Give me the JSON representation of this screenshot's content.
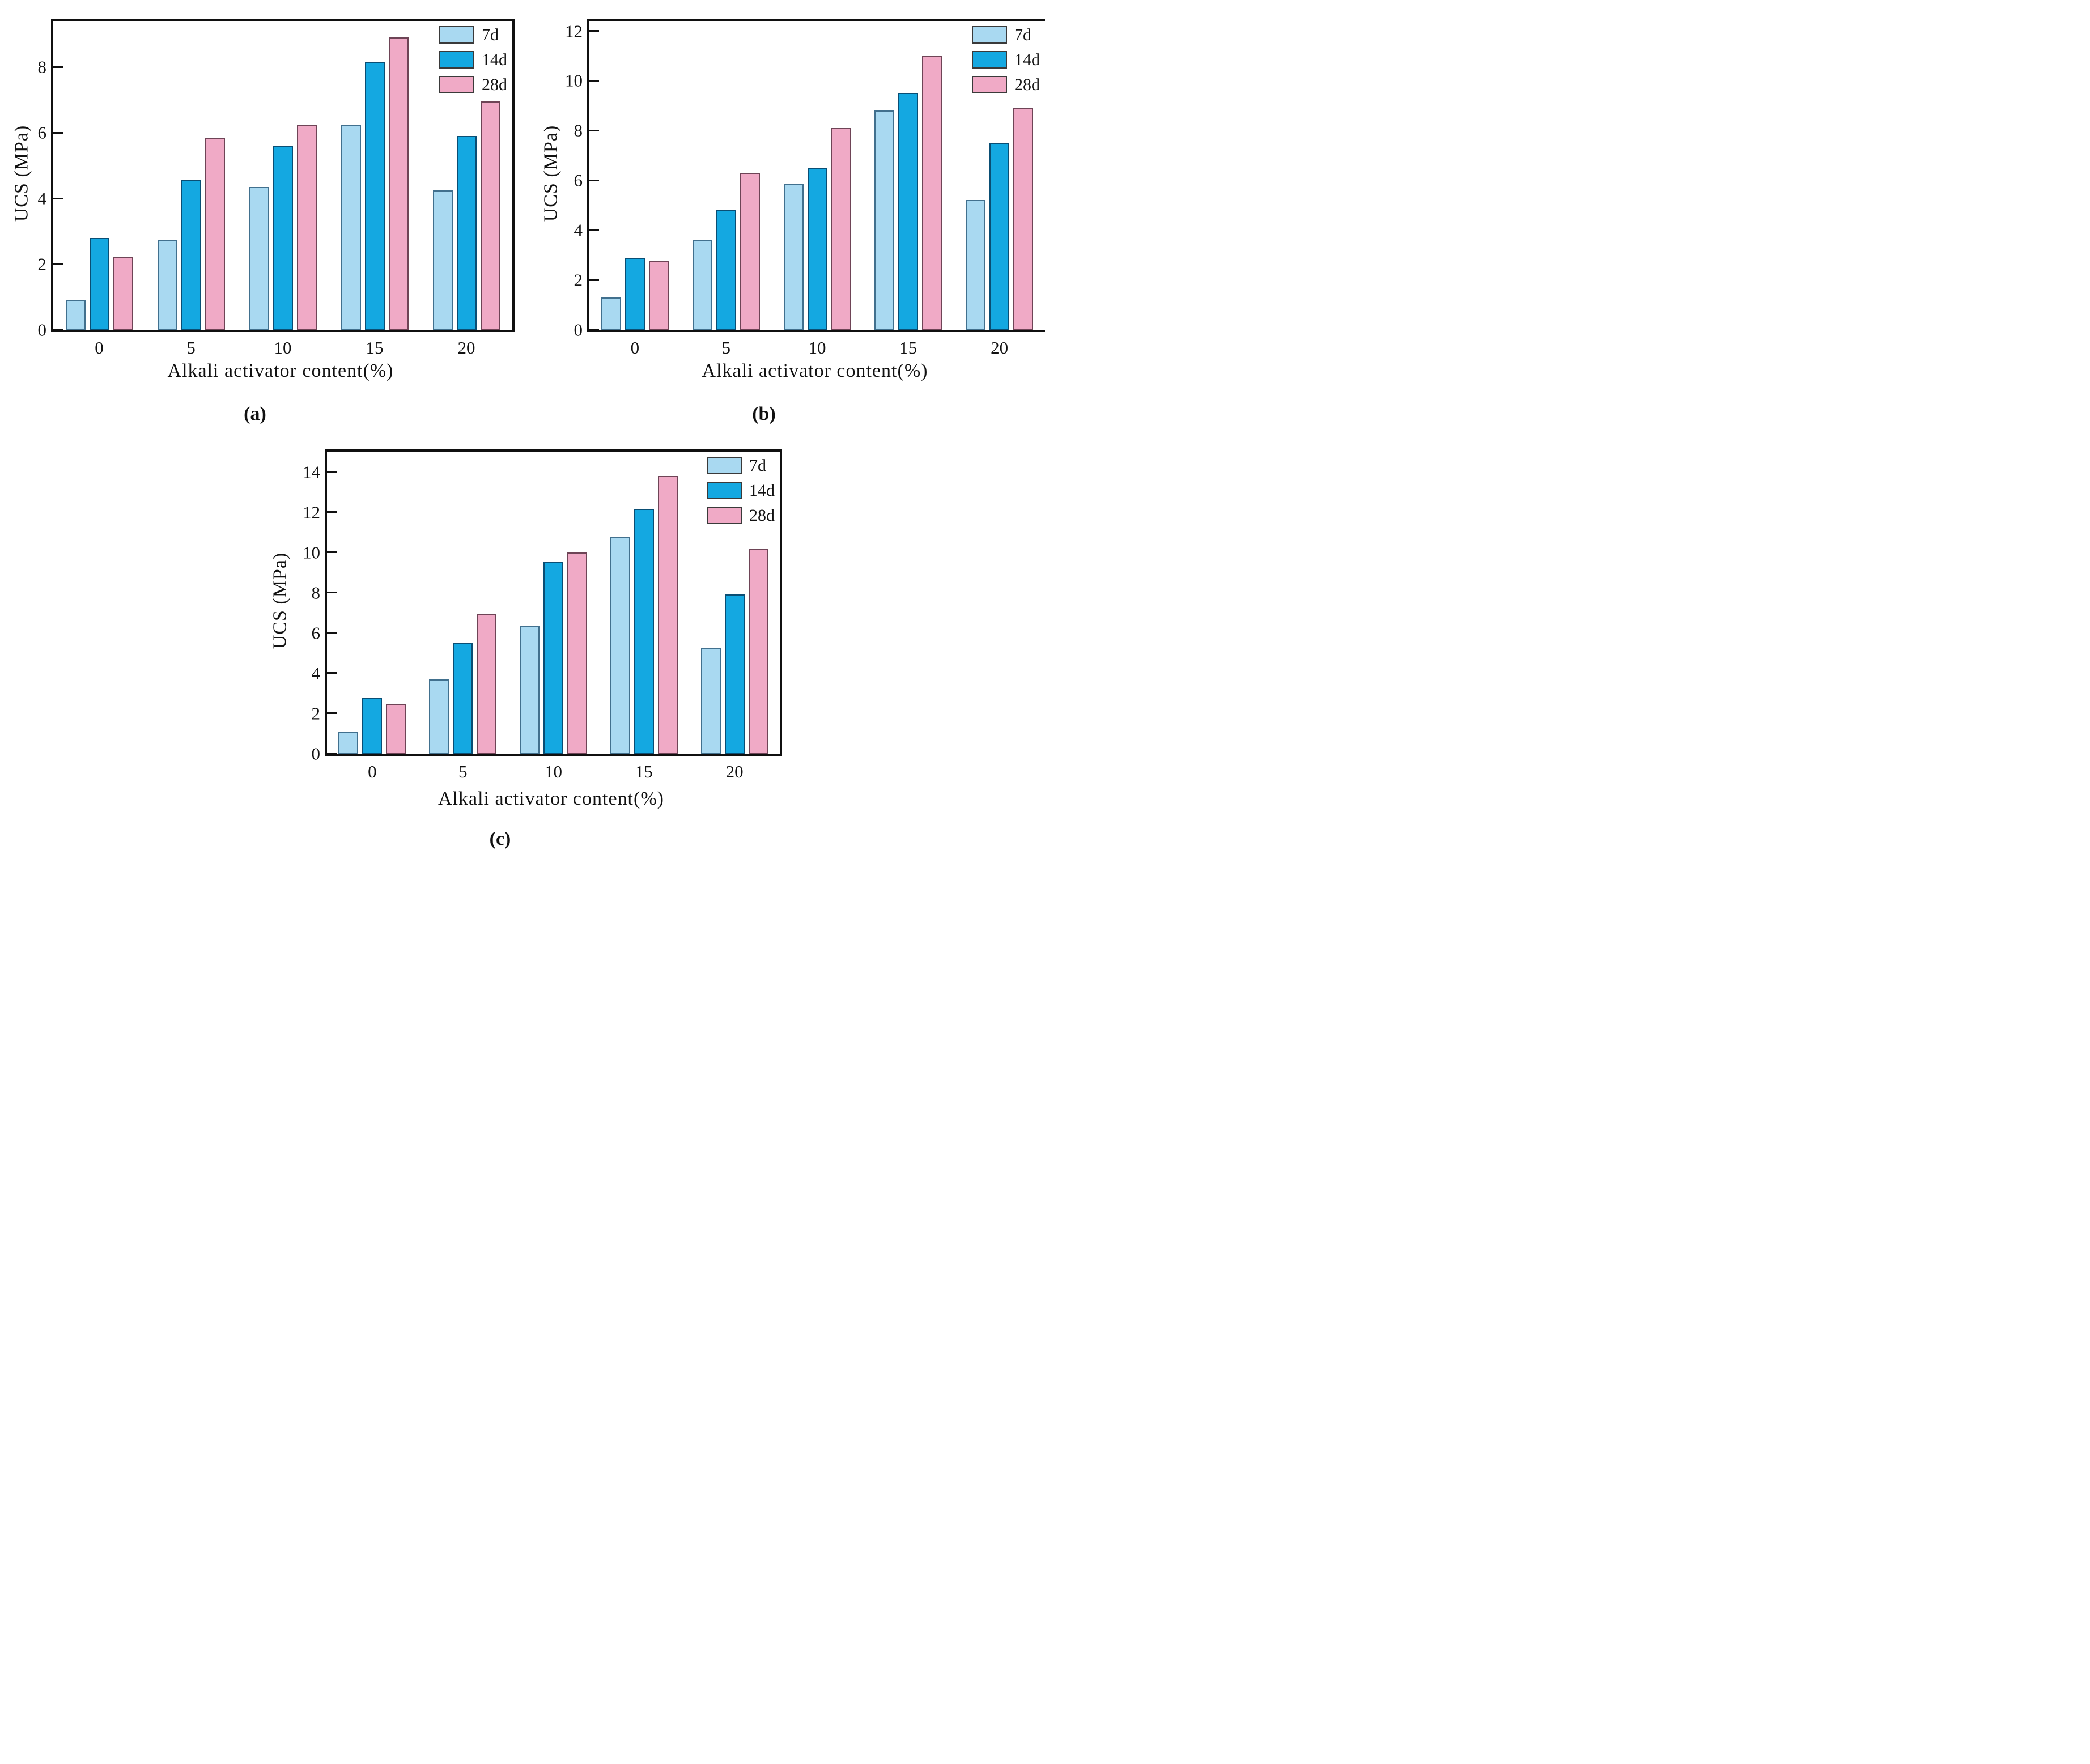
{
  "figure": {
    "y_axis_label": "UCS (MPa)",
    "x_axis_label": "Alkali activator content(%)",
    "legend_labels": [
      "7d",
      "14d",
      "28d"
    ],
    "colors": {
      "fills": {
        "7d": "#A9D9F1",
        "14d": "#14A8E1",
        "28d": "#F0AAC6"
      },
      "borders": {
        "7d": "#41708E",
        "14d": "#0A4E74",
        "28d": "#6E4456"
      },
      "axis": "#101010",
      "legend_swatch_border": "#3a3a3a"
    }
  },
  "chart_data": [
    {
      "type": "bar",
      "panel_label": "(a)",
      "xlabel": "Alkali activator content(%)",
      "ylabel": "UCS (MPa)",
      "categories": [
        "0",
        "5",
        "10",
        "15",
        "20"
      ],
      "yticks": [
        0,
        2,
        4,
        6,
        8
      ],
      "ylim": [
        0,
        9.4
      ],
      "grid": false,
      "legend_position": "top-right-inside",
      "series": [
        {
          "name": "7d",
          "values": [
            0.9,
            2.75,
            4.35,
            6.25,
            4.25
          ]
        },
        {
          "name": "14d",
          "values": [
            2.8,
            4.55,
            5.6,
            8.15,
            5.9
          ]
        },
        {
          "name": "28d",
          "values": [
            2.2,
            5.85,
            6.25,
            8.9,
            6.95
          ]
        }
      ]
    },
    {
      "type": "bar",
      "panel_label": "(b)",
      "xlabel": "Alkali activator content(%)",
      "ylabel": "UCS (MPa)",
      "categories": [
        "0",
        "5",
        "10",
        "15",
        "20"
      ],
      "yticks": [
        0,
        2,
        4,
        6,
        8,
        10,
        12
      ],
      "ylim": [
        0,
        12.4
      ],
      "grid": false,
      "legend_position": "top-right-inside",
      "series": [
        {
          "name": "7d",
          "values": [
            1.3,
            3.6,
            5.85,
            8.8,
            5.2
          ]
        },
        {
          "name": "14d",
          "values": [
            2.9,
            4.8,
            6.5,
            9.5,
            7.5
          ]
        },
        {
          "name": "28d",
          "values": [
            2.75,
            6.3,
            8.1,
            11.0,
            8.9
          ]
        }
      ]
    },
    {
      "type": "bar",
      "panel_label": "(c)",
      "xlabel": "Alkali activator content(%)",
      "ylabel": "UCS (MPa)",
      "categories": [
        "0",
        "5",
        "10",
        "15",
        "20"
      ],
      "yticks": [
        0,
        2,
        4,
        6,
        8,
        10,
        12,
        14
      ],
      "ylim": [
        0,
        15
      ],
      "grid": false,
      "legend_position": "top-right-inside",
      "series": [
        {
          "name": "7d",
          "values": [
            1.1,
            3.7,
            6.35,
            10.75,
            5.25
          ]
        },
        {
          "name": "14d",
          "values": [
            2.75,
            5.5,
            9.5,
            12.15,
            7.9
          ]
        },
        {
          "name": "28d",
          "values": [
            2.45,
            6.95,
            10.0,
            13.8,
            10.2
          ]
        }
      ]
    }
  ]
}
